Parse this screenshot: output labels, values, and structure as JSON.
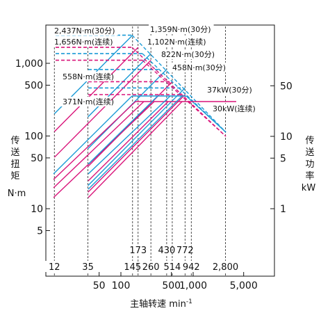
{
  "chart_data": {
    "type": "line",
    "x_scale": "log",
    "y_scale": "log",
    "xlabel": "主轴转速 min-1",
    "xlabel_main": "主轴转速 min",
    "xlabel_sup": "-1",
    "ylabel_left_lines": [
      "传",
      "送",
      "扭",
      "矩"
    ],
    "ylabel_left_unit": "N·m",
    "ylabel_right_lines": [
      "传",
      "送",
      "功",
      "率"
    ],
    "ylabel_right_unit": "kW",
    "x_ticks": [
      {
        "value": 50,
        "label": "50"
      },
      {
        "value": 100,
        "label": "100"
      },
      {
        "value": 500,
        "label": "500"
      },
      {
        "value": 1000,
        "label": "1,000"
      },
      {
        "value": 5000,
        "label": "5,000"
      }
    ],
    "y_left_ticks": [
      {
        "value": 5,
        "label": "5"
      },
      {
        "value": 10,
        "label": "10"
      },
      {
        "value": 50,
        "label": "50"
      },
      {
        "value": 100,
        "label": "100"
      },
      {
        "value": 500,
        "label": "500"
      },
      {
        "value": 1000,
        "label": "1,000"
      }
    ],
    "y_right_ticks": [
      {
        "value": 1,
        "label": "1"
      },
      {
        "value": 5,
        "label": "5"
      },
      {
        "value": 10,
        "label": "10"
      },
      {
        "value": 50,
        "label": "50"
      }
    ],
    "speed_markers": [
      {
        "value": 12,
        "label": "12",
        "row": "bottom"
      },
      {
        "value": 35,
        "label": "35",
        "row": "bottom"
      },
      {
        "value": 145,
        "label": "145",
        "row": "bottom"
      },
      {
        "value": 173,
        "label": "173",
        "row": "top"
      },
      {
        "value": 260,
        "label": "260",
        "row": "bottom"
      },
      {
        "value": 430,
        "label": "430",
        "row": "top"
      },
      {
        "value": 514,
        "label": "514",
        "row": "bottom"
      },
      {
        "value": 772,
        "label": "772",
        "row": "top"
      },
      {
        "value": 942,
        "label": "942",
        "row": "bottom"
      },
      {
        "value": 2800,
        "label": "2,800",
        "row": "bottom"
      }
    ],
    "torque_annotations": [
      {
        "label": "2,437N·m(30分)",
        "value": 2437
      },
      {
        "label": "1,656N·m(连续)",
        "value": 1656
      },
      {
        "label": "1,359N·m(30分)",
        "value": 1359
      },
      {
        "label": "1,102N·m(连续)",
        "value": 1102
      },
      {
        "label": "822N·m(30分)",
        "value": 822
      },
      {
        "label": "558N·m(连续)",
        "value": 558
      },
      {
        "label": "458N·m(30分)",
        "value": 458
      },
      {
        "label": "371N·m(连续)",
        "value": 371
      }
    ],
    "power_annotations": [
      {
        "label": "37kW(30分)",
        "value": 37
      },
      {
        "label": "30kW(连续)",
        "value": 30
      }
    ],
    "series": [
      {
        "rating": "30min",
        "color": "#1a9ad6",
        "torque": 2437,
        "x_start": 12,
        "corner": 145,
        "x_end": 2800
      },
      {
        "rating": "30min",
        "color": "#1a9ad6",
        "torque": 1359,
        "x_start": 35,
        "corner": 260,
        "x_end": 2800
      },
      {
        "rating": "30min",
        "color": "#1a9ad6",
        "torque": 822,
        "x_start": 35,
        "corner": 430,
        "x_end": 2800
      },
      {
        "rating": "30min",
        "color": "#1a9ad6",
        "torque": 458,
        "x_start": 35,
        "corner": 772,
        "x_end": 2800
      },
      {
        "rating": "continuous",
        "color": "#d9147a",
        "torque": 1656,
        "x_start": 12,
        "corner": 173,
        "x_end": 2800
      },
      {
        "rating": "continuous",
        "color": "#d9147a",
        "torque": 1102,
        "x_start": 12,
        "corner": 260,
        "x_end": 2800
      },
      {
        "rating": "continuous",
        "color": "#d9147a",
        "torque": 558,
        "x_start": 35,
        "corner": 514,
        "x_end": 2800
      },
      {
        "rating": "continuous",
        "color": "#d9147a",
        "torque": 371,
        "x_start": 35,
        "corner": 772,
        "x_end": 2800
      }
    ],
    "xlim": [
      7,
      8000
    ],
    "ylim_left": [
      2,
      3500
    ],
    "ylim_right": [
      0.4,
      120
    ],
    "grid": false
  }
}
